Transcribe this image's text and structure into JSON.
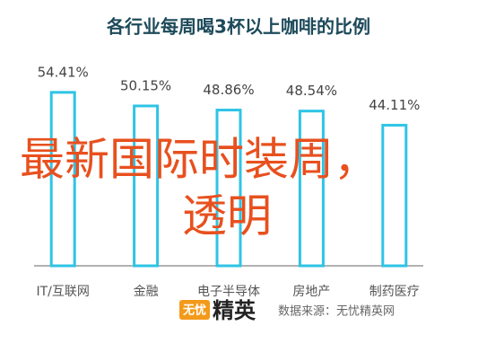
{
  "chart_data": {
    "type": "bar",
    "title": "各行业每周喝3杯以上咖啡的比例",
    "categories": [
      "IT/互联网",
      "金融",
      "电子半导体",
      "房地产",
      "制药医疗"
    ],
    "values": [
      54.41,
      50.15,
      48.86,
      48.54,
      44.11
    ],
    "value_labels": [
      "54.41%",
      "50.15%",
      "48.86%",
      "48.54%",
      "44.11%"
    ],
    "color": "#2ec4e6"
  },
  "overlay_text": [
    "最新国际时装周，",
    "透明"
  ],
  "footer": {
    "logo_mark": "无忧",
    "logo_text": "精英",
    "source": "数据来源：无忧精英网"
  }
}
